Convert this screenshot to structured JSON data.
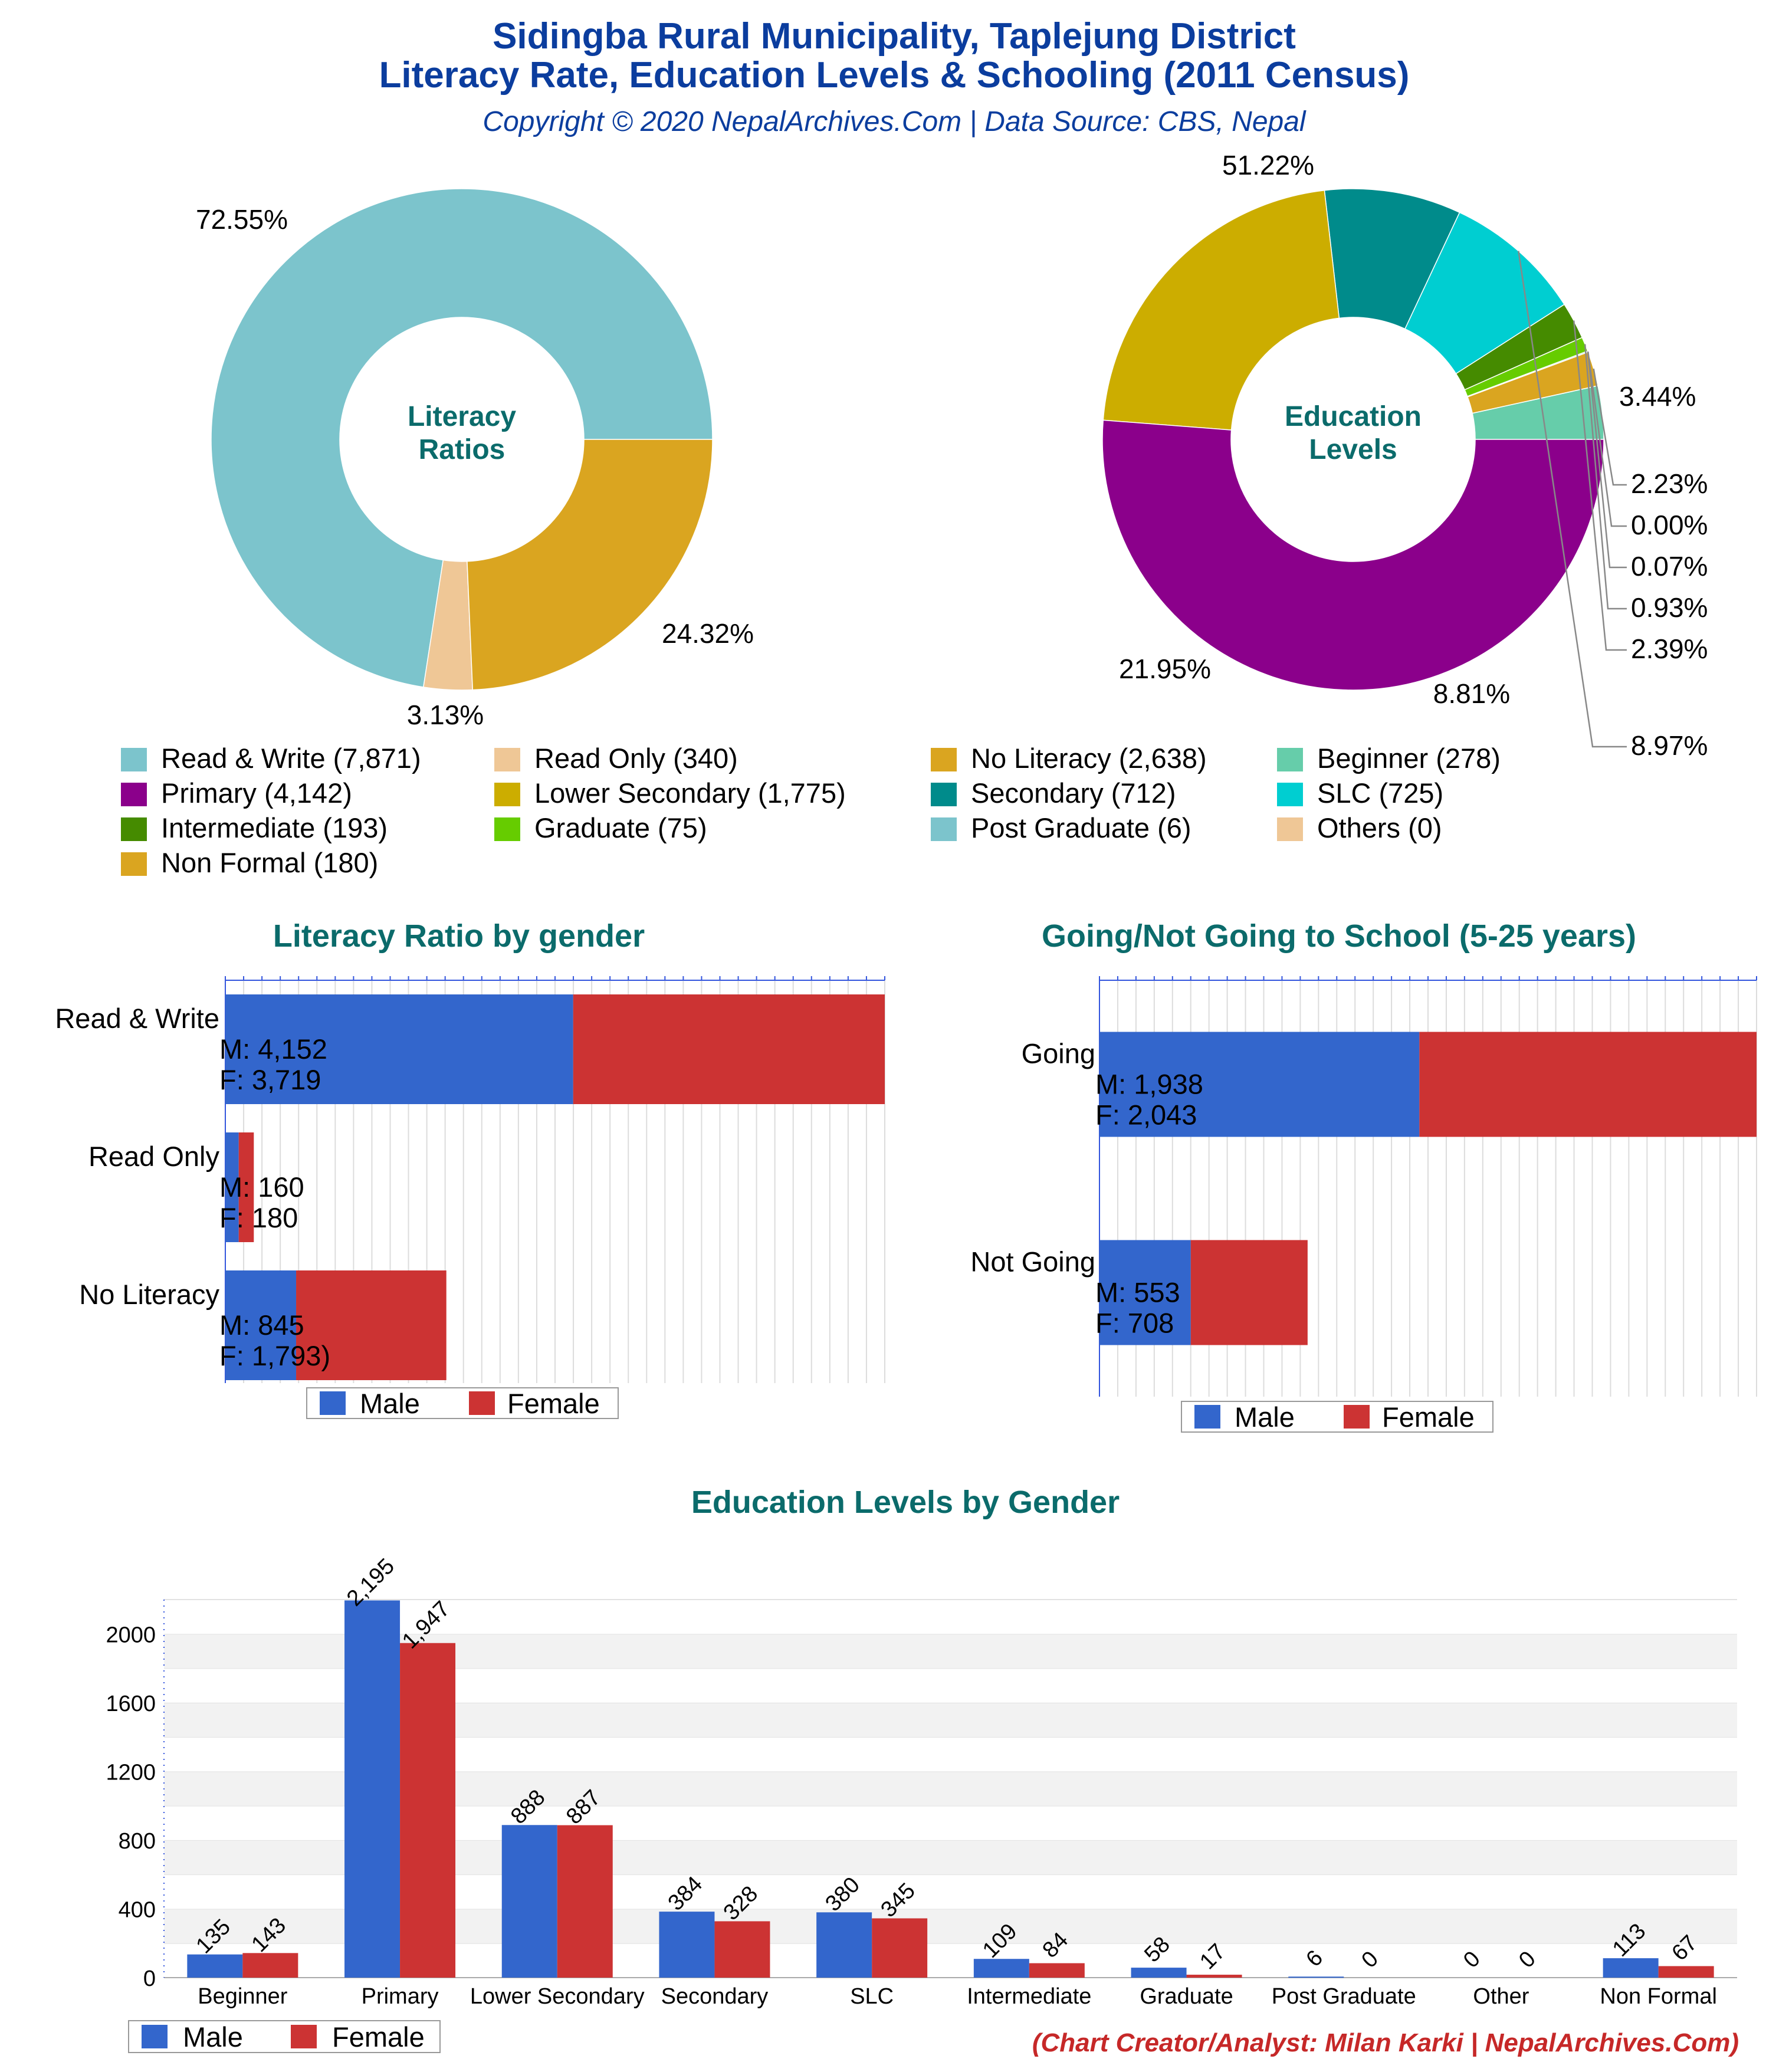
{
  "header": {
    "title_line1": "Sidingba Rural Municipality, Taplejung District",
    "title_line2": "Literacy Rate, Education Levels & Schooling (2011 Census)",
    "subtitle": "Copyright © 2020 NepalArchives.Com | Data Source: CBS, Nepal"
  },
  "colors": {
    "title_blue": "#0b3d9e",
    "heading_teal": "#0b6b6b",
    "male": "#3366cc",
    "female": "#cc3333",
    "footer_red": "#c62828"
  },
  "chart_data": [
    {
      "type": "pie",
      "title": "Literacy Ratios",
      "center_label": [
        "Literacy",
        "Ratios"
      ],
      "slices": [
        {
          "label": "Read & Write",
          "value": 7871,
          "pct_label": "72.55%",
          "color": "#7cc4cc"
        },
        {
          "label": "Read Only",
          "value": 340,
          "pct_label": "3.13%",
          "color": "#efc796"
        },
        {
          "label": "No Literacy",
          "value": 2638,
          "pct_label": "24.32%",
          "color": "#daa520"
        }
      ]
    },
    {
      "type": "pie",
      "title": "Education Levels",
      "center_label": [
        "Education",
        "Levels"
      ],
      "slices": [
        {
          "label": "Beginner",
          "value": 278,
          "pct_label": "3.44%",
          "color": "#66cdaa"
        },
        {
          "label": "Non Formal",
          "value": 180,
          "pct_label": "2.23%",
          "color": "#daa520"
        },
        {
          "label": "Others",
          "value": 0,
          "pct_label": "0.00%",
          "color": "#efc796"
        },
        {
          "label": "Post Graduate",
          "value": 6,
          "pct_label": "0.07%",
          "color": "#7cc4cc"
        },
        {
          "label": "Graduate",
          "value": 75,
          "pct_label": "0.93%",
          "color": "#66cc00"
        },
        {
          "label": "Intermediate",
          "value": 193,
          "pct_label": "2.39%",
          "color": "#458b00"
        },
        {
          "label": "SLC",
          "value": 725,
          "pct_label": "8.97%",
          "color": "#00ced1"
        },
        {
          "label": "Secondary",
          "value": 712,
          "pct_label": "8.81%",
          "color": "#008b8b"
        },
        {
          "label": "Lower Secondary",
          "value": 1775,
          "pct_label": "21.95%",
          "color": "#ccad00"
        },
        {
          "label": "Primary",
          "value": 4142,
          "pct_label": "51.22%",
          "color": "#8b008b"
        }
      ]
    },
    {
      "type": "bar",
      "orientation": "horizontal",
      "stacked": true,
      "title": "Literacy Ratio by gender",
      "categories": [
        "Read & Write",
        "Read Only",
        "No Literacy"
      ],
      "category_labels": [
        [
          "Read & Write",
          "M: 4,152",
          "F: 3,719"
        ],
        [
          "Read Only",
          "M: 160",
          "F: 180"
        ],
        [
          "No Literacy",
          "M: 845",
          "F: 1,793)"
        ]
      ],
      "series": [
        {
          "name": "Male",
          "values": [
            4152,
            160,
            845
          ]
        },
        {
          "name": "Female",
          "values": [
            3719,
            180,
            1793
          ]
        }
      ],
      "xlim": [
        0,
        7871
      ],
      "legend": [
        "Male",
        "Female"
      ]
    },
    {
      "type": "bar",
      "orientation": "horizontal",
      "stacked": true,
      "title": "Going/Not Going to School (5-25 years)",
      "categories": [
        "Going",
        "Not Going"
      ],
      "category_labels": [
        [
          "Going",
          "M: 1,938",
          "F: 2,043"
        ],
        [
          "Not Going",
          "M: 553",
          "F: 708"
        ]
      ],
      "series": [
        {
          "name": "Male",
          "values": [
            1938,
            553
          ]
        },
        {
          "name": "Female",
          "values": [
            2043,
            708
          ]
        }
      ],
      "xlim": [
        0,
        3981
      ],
      "legend": [
        "Male",
        "Female"
      ]
    },
    {
      "type": "bar",
      "title": "Education Levels by Gender",
      "categories": [
        "Beginner",
        "Primary",
        "Lower Secondary",
        "Secondary",
        "SLC",
        "Intermediate",
        "Graduate",
        "Post Graduate",
        "Other",
        "Non Formal"
      ],
      "series": [
        {
          "name": "Male",
          "values": [
            135,
            2195,
            888,
            384,
            380,
            109,
            58,
            6,
            0,
            113
          ],
          "value_labels": [
            "135",
            "2,195",
            "888",
            "384",
            "380",
            "109",
            "58",
            "6",
            "0",
            "113"
          ]
        },
        {
          "name": "Female",
          "values": [
            143,
            1947,
            887,
            328,
            345,
            84,
            17,
            0,
            0,
            67
          ],
          "value_labels": [
            "143",
            "1,947",
            "887",
            "328",
            "345",
            "84",
            "17",
            "0",
            "0",
            "67"
          ]
        }
      ],
      "ylim": [
        0,
        2200
      ],
      "yticks": [
        "0",
        "400",
        "800",
        "1200",
        "1600",
        "2000"
      ],
      "legend": [
        "Male",
        "Female"
      ]
    }
  ],
  "legend_main": [
    {
      "label": "Read & Write (7,871)",
      "color": "#7cc4cc"
    },
    {
      "label": "Read Only (340)",
      "color": "#efc796"
    },
    {
      "label": "No Literacy (2,638)",
      "color": "#daa520"
    },
    {
      "label": "Beginner (278)",
      "color": "#66cdaa"
    },
    {
      "label": "Primary (4,142)",
      "color": "#8b008b"
    },
    {
      "label": "Lower Secondary (1,775)",
      "color": "#ccad00"
    },
    {
      "label": "Secondary (712)",
      "color": "#008b8b"
    },
    {
      "label": "SLC (725)",
      "color": "#00ced1"
    },
    {
      "label": "Intermediate (193)",
      "color": "#458b00"
    },
    {
      "label": "Graduate (75)",
      "color": "#66cc00"
    },
    {
      "label": "Post Graduate (6)",
      "color": "#7cc4cc"
    },
    {
      "label": "Others (0)",
      "color": "#efc796"
    },
    {
      "label": "Non Formal (180)",
      "color": "#daa520"
    }
  ],
  "footer": "(Chart Creator/Analyst: Milan Karki | NepalArchives.Com)"
}
